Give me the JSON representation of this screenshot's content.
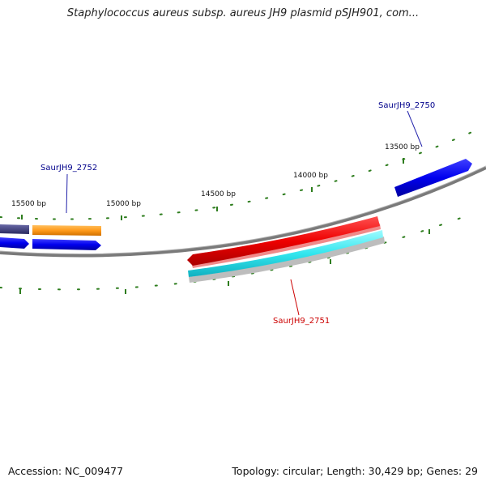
{
  "title": "Staphylococcus aureus subsp. aureus JH9 plasmid pSJH901, com...",
  "footer": {
    "accession": "Accession: NC_009477",
    "info": "Topology: circular; Length: 30,429 bp; Genes: 29"
  },
  "colors": {
    "background": "#ffffff",
    "backbone": "#7a7a7a",
    "tick": "#2e7d1e",
    "gene_blue": "#0000ee",
    "gene_navy": "#3a3a78",
    "gene_orange": "#ff9a1a",
    "gene_red": "#ee0000",
    "gene_cyan": "#33e6ee",
    "gene_gray": "#bdbdbd",
    "label_blue": "#00008b",
    "label_red": "#cc0000"
  },
  "scale_labels": [
    "15500 bp",
    "15000 bp",
    "14500 bp",
    "14000 bp",
    "13500 bp"
  ],
  "genes": [
    {
      "name": "SaurJH9_2752",
      "color": "#00008b"
    },
    {
      "name": "SaurJH9_2750",
      "color": "#00008b"
    },
    {
      "name": "SaurJH9_2751",
      "color": "#cc0000"
    }
  ]
}
